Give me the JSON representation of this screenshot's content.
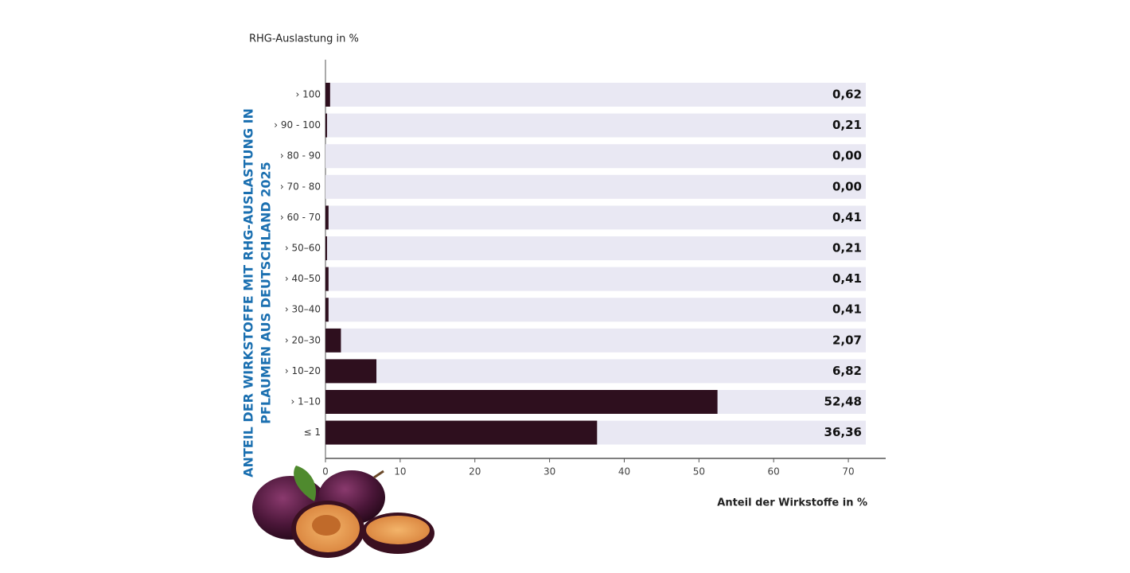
{
  "chart_data": {
    "type": "bar",
    "orientation": "horizontal",
    "title": [
      "ANTEIL DER WIRKSTOFFE MIT RHG-AUSLASTUNG IN",
      "PFLAUMEN AUS DEUTSCHLAND 2025"
    ],
    "y_label": "RHG-Auslastung in %",
    "x_label": "Anteil der Wirkstoffe in %",
    "categories": [
      "› 100",
      "› 90 - 100",
      "› 80 - 90",
      "› 70 - 80",
      "› 60 - 70",
      "› 50–60",
      "› 40–50",
      "› 30–40",
      "› 20–30",
      "› 10–20",
      "› 1–10",
      "≤ 1"
    ],
    "values": [
      0.62,
      0.21,
      0,
      0,
      0.41,
      0.21,
      0.41,
      0.41,
      2.07,
      6.82,
      52.48,
      36.36
    ],
    "value_labels": [
      "0,62",
      "0,21",
      "0,00",
      "0,00",
      "0,41",
      "0,21",
      "0,41",
      "0,41",
      "2,07",
      "6,82",
      "52,48",
      "36,36"
    ],
    "color": "#2e0f1e",
    "xlim": [
      0,
      75
    ],
    "xticks": [
      0,
      10,
      20,
      30,
      40,
      50,
      60,
      70
    ]
  }
}
